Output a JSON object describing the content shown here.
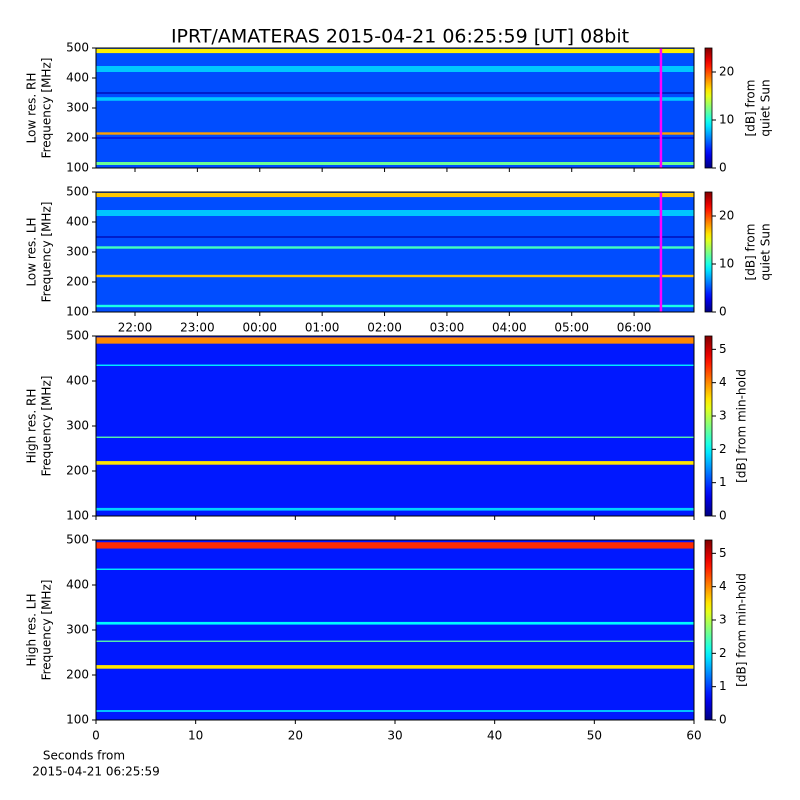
{
  "figure": {
    "title": "IPRT/AMATERAS 2015-04-21 06:25:59 [UT]   08bit",
    "xlabel": [
      "Seconds from",
      "2015-04-21 06:25:59"
    ]
  },
  "chart_data": [
    {
      "type": "heatmap",
      "colormap": "jet",
      "ylabel": [
        "Low res. RH",
        "Frequency [MHz]"
      ],
      "xlim": [
        21.375,
        30.96
      ],
      "xticks": [
        22,
        23,
        24,
        25,
        26,
        27,
        28,
        29,
        30
      ],
      "ylim": [
        100,
        500
      ],
      "yticks": [
        100,
        200,
        300,
        400,
        500
      ],
      "colorbar": {
        "label": [
          "[dB] from",
          "quiet Sun"
        ],
        "lim": [
          0,
          25
        ],
        "ticks": [
          0,
          10,
          20
        ]
      },
      "background": 5,
      "bands": [
        {
          "freq": 490,
          "width": 14,
          "value": 16
        },
        {
          "freq": 430,
          "width": 20,
          "value": 8
        },
        {
          "freq": 350,
          "width": 4,
          "value": 1
        },
        {
          "freq": 330,
          "width": 12,
          "value": 8
        },
        {
          "freq": 215,
          "width": 8,
          "value": 18
        },
        {
          "freq": 200,
          "width": 4,
          "value": 2
        },
        {
          "freq": 115,
          "width": 10,
          "value": 12
        }
      ],
      "marker": {
        "x": 30.43,
        "color": "#ff00ff"
      }
    },
    {
      "type": "heatmap",
      "colormap": "jet",
      "ylabel": [
        "Low res. LH",
        "Frequency [MHz]"
      ],
      "xlim": [
        21.375,
        30.96
      ],
      "xticks": [
        {
          "value": 22,
          "label": "22:00"
        },
        {
          "value": 23,
          "label": "23:00"
        },
        {
          "value": 24,
          "label": "00:00"
        },
        {
          "value": 25,
          "label": "01:00"
        },
        {
          "value": 26,
          "label": "02:00"
        },
        {
          "value": 27,
          "label": "03:00"
        },
        {
          "value": 28,
          "label": "04:00"
        },
        {
          "value": 29,
          "label": "05:00"
        },
        {
          "value": 30,
          "label": "06:00"
        }
      ],
      "ylim": [
        100,
        500
      ],
      "yticks": [
        100,
        200,
        300,
        400,
        500
      ],
      "colorbar": {
        "label": [
          "[dB] from",
          "quiet Sun"
        ],
        "lim": [
          0,
          25
        ],
        "ticks": [
          0,
          10,
          20
        ]
      },
      "background": 5,
      "bands": [
        {
          "freq": 490,
          "width": 14,
          "value": 17
        },
        {
          "freq": 430,
          "width": 20,
          "value": 8
        },
        {
          "freq": 350,
          "width": 4,
          "value": 1
        },
        {
          "freq": 315,
          "width": 8,
          "value": 11
        },
        {
          "freq": 220,
          "width": 8,
          "value": 17
        },
        {
          "freq": 120,
          "width": 8,
          "value": 10
        }
      ],
      "marker": {
        "x": 30.43,
        "color": "#ff00ff"
      }
    },
    {
      "type": "heatmap",
      "colormap": "jet",
      "ylabel": [
        "High res. RH",
        "Frequency [MHz]"
      ],
      "xlim": [
        0,
        60
      ],
      "xticks": [
        0,
        10,
        20,
        30,
        40,
        50,
        60
      ],
      "ylim": [
        100,
        500
      ],
      "yticks": [
        100,
        200,
        300,
        400,
        500
      ],
      "colorbar": {
        "label": [
          "[dB] from min-hold"
        ],
        "lim": [
          0,
          5.4
        ],
        "ticks": [
          0,
          1,
          2,
          3,
          4,
          5
        ]
      },
      "background": 0.8,
      "bands": [
        {
          "freq": 490,
          "width": 14,
          "value": 4
        },
        {
          "freq": 435,
          "width": 3,
          "value": 2
        },
        {
          "freq": 275,
          "width": 3,
          "value": 2.5
        },
        {
          "freq": 218,
          "width": 8,
          "value": 3.5
        },
        {
          "freq": 115,
          "width": 6,
          "value": 1.8
        }
      ]
    },
    {
      "type": "heatmap",
      "colormap": "jet",
      "ylabel": [
        "High res. LH",
        "Frequency [MHz]"
      ],
      "xlim": [
        0,
        60
      ],
      "xticks": [
        0,
        10,
        20,
        30,
        40,
        50,
        60
      ],
      "ylim": [
        100,
        500
      ],
      "yticks": [
        100,
        200,
        300,
        400,
        500
      ],
      "colorbar": {
        "label": [
          "[dB] from min-hold"
        ],
        "lim": [
          0,
          5.4
        ],
        "ticks": [
          0,
          1,
          2,
          3,
          4,
          5
        ]
      },
      "background": 0.8,
      "bands": [
        {
          "freq": 488,
          "width": 14,
          "value": 4.5
        },
        {
          "freq": 435,
          "width": 3,
          "value": 2
        },
        {
          "freq": 315,
          "width": 6,
          "value": 2
        },
        {
          "freq": 275,
          "width": 3,
          "value": 2.5
        },
        {
          "freq": 218,
          "width": 8,
          "value": 3.5
        },
        {
          "freq": 120,
          "width": 4,
          "value": 1.8
        }
      ]
    }
  ]
}
